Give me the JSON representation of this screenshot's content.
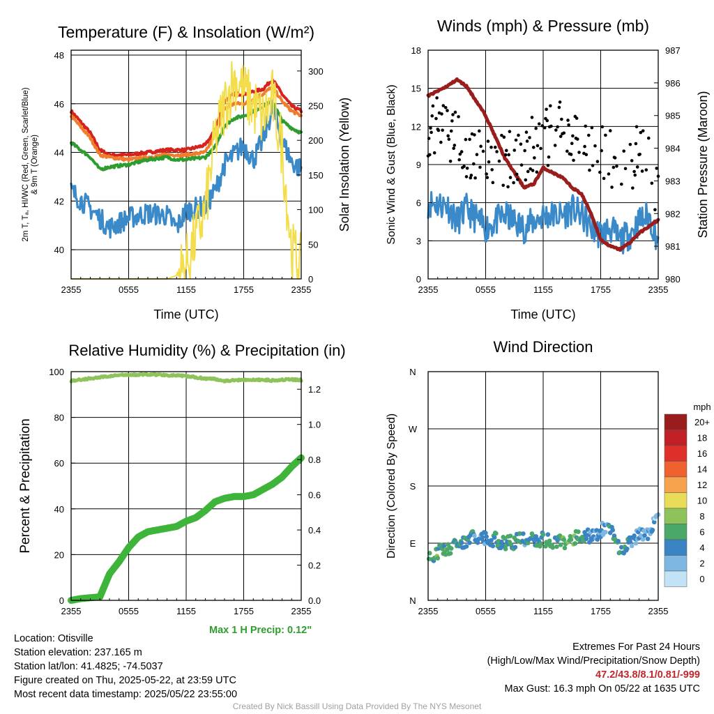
{
  "panels": {
    "temperature": {
      "title": "Temperature (F) & Insolation (W/m²)",
      "left_label": [
        "2m T, Tₐ, HI/WC (Red, Green, Scarlet/Blue)",
        "& 9m T (Orange)"
      ],
      "right_label": "Solar Insolation (Yellow)",
      "xlabel": "Time (UTC)",
      "xticks": [
        "2355",
        "0555",
        "1155",
        "1755",
        "2355"
      ],
      "left_ticks": [
        "40",
        "42",
        "44",
        "46",
        "48"
      ],
      "right_ticks": [
        "0",
        "50",
        "100",
        "150",
        "200",
        "250",
        "300"
      ]
    },
    "winds": {
      "title": "Winds (mph) & Pressure (mb)",
      "left_label": "Sonic Wind & Gust (Blue, Black)",
      "right_label": "Station Pressure (Maroon)",
      "xlabel": "Time (UTC)",
      "xticks": [
        "2355",
        "0555",
        "1155",
        "1755",
        "2355"
      ],
      "left_ticks": [
        "0",
        "3",
        "6",
        "9",
        "12",
        "15",
        "18"
      ],
      "right_ticks": [
        "980",
        "981",
        "982",
        "983",
        "984",
        "985",
        "986",
        "987"
      ]
    },
    "humidity": {
      "title": "Relative Humidity (%) & Precipitation (in)",
      "left_label": "Percent & Precipitation",
      "xticks": [
        "2355",
        "0555",
        "1155",
        "1755",
        "2355"
      ],
      "left_ticks": [
        "0",
        "20",
        "40",
        "60",
        "80",
        "100"
      ],
      "right_ticks": [
        "0.0",
        "0.2",
        "0.4",
        "0.6",
        "0.8",
        "1.0",
        "1.2"
      ],
      "note": "Max 1 H Precip: 0.12\""
    },
    "direction": {
      "title": "Wind Direction",
      "left_label": "Direction (Colored By Speed)",
      "xticks": [
        "2355",
        "0555",
        "1155",
        "1755",
        "2355"
      ],
      "left_ticks": [
        "N",
        "E",
        "S",
        "W",
        "N"
      ],
      "legend_title": "mph",
      "legend_labels": [
        "20+",
        "18",
        "16",
        "14",
        "12",
        "10",
        "8",
        "6",
        "4",
        "2",
        "0"
      ],
      "legend_colors": [
        "#9a1d1d",
        "#c01f25",
        "#df2f2a",
        "#ef6230",
        "#f7a24c",
        "#e8dc58",
        "#8dc35a",
        "#4aa869",
        "#3b84c3",
        "#7eb8e2",
        "#c2e3f5"
      ]
    }
  },
  "info_left": [
    "Location: Otisville",
    "Station elevation: 237.165 m",
    "Station lat/lon: 41.4825; -74.5037",
    "Figure created on Thu, 2025-05-22, at 23:59 UTC",
    "Most recent data timestamp: 2025/05/22 23:55:00"
  ],
  "info_right": {
    "line1": "Extremes For Past 24 Hours",
    "line2": "(High/Low/Max Wind/Precipitation/Snow Depth)",
    "values": "47.2/43.8/8.1/0.81/-999",
    "gust": "Max Gust: 16.3 mph On 05/22 at 1635 UTC"
  },
  "footer": "Created By Nick Bassill Using Data Provided By The NYS Mesonet",
  "chart_data": [
    {
      "type": "line",
      "title": "Temperature (F) & Insolation (W/m²)",
      "x_hours_since_2355": [
        0,
        2,
        3,
        4,
        6,
        8,
        10,
        11,
        12,
        14,
        15,
        16,
        17,
        18,
        19,
        20,
        21,
        22,
        23,
        24
      ],
      "series": [
        {
          "name": "2m T",
          "color": "#d7231e",
          "values": [
            45.7,
            44.8,
            44.1,
            43.9,
            43.9,
            44.0,
            44.1,
            44.1,
            44.1,
            44.3,
            44.9,
            46.1,
            46.4,
            46.4,
            46.5,
            46.6,
            47.0,
            46.4,
            45.9,
            45.7
          ]
        },
        {
          "name": "9m T",
          "color": "#f07d2b",
          "values": [
            45.5,
            44.6,
            43.9,
            43.8,
            43.7,
            43.8,
            43.9,
            43.9,
            43.9,
            44.0,
            44.7,
            45.8,
            46.0,
            46.0,
            46.2,
            46.4,
            46.7,
            46.1,
            45.7,
            45.5
          ]
        },
        {
          "name": "HI/WC",
          "color": "#2e9d2e",
          "values": [
            44.4,
            43.8,
            43.3,
            43.4,
            43.5,
            43.7,
            43.8,
            43.7,
            43.7,
            43.8,
            44.2,
            45.1,
            45.4,
            45.5,
            45.7,
            45.9,
            46.1,
            45.3,
            45.0,
            44.8
          ]
        },
        {
          "name": "Td",
          "color": "#3a89c9",
          "values": [
            42.4,
            41.7,
            41.3,
            40.9,
            41.3,
            41.5,
            41.4,
            40.9,
            41.6,
            41.8,
            42.4,
            43.5,
            43.9,
            44.3,
            43.7,
            44.5,
            45.8,
            44.5,
            43.6,
            43.3
          ]
        },
        {
          "name": "Solar Insolation",
          "color": "#f3dd4a",
          "axis": "right",
          "values": [
            0,
            0,
            0,
            0,
            0,
            0,
            0,
            5,
            20,
            100,
            200,
            250,
            290,
            270,
            250,
            230,
            260,
            190,
            40,
            20
          ]
        }
      ],
      "ylim": [
        38.8,
        48.2
      ],
      "ylim_right": [
        0,
        330
      ]
    },
    {
      "type": "line",
      "title": "Winds (mph) & Pressure (mb)",
      "x_hours_since_2355": [
        0,
        2,
        3,
        4,
        6,
        8,
        10,
        11,
        12,
        14,
        15,
        16,
        17,
        18,
        19,
        20,
        21,
        22,
        23,
        24
      ],
      "series": [
        {
          "name": "Sonic Wind",
          "color": "#3a89c9",
          "values": [
            6.0,
            5.8,
            4.5,
            5.5,
            4.0,
            5.0,
            4.0,
            4.5,
            5.0,
            5.0,
            5.5,
            5.0,
            4.0,
            3.5,
            4.0,
            3.0,
            3.5,
            4.5,
            5.0,
            3.0
          ]
        },
        {
          "name": "Gust",
          "color": "#000000",
          "values": [
            12.0,
            12.0,
            10.5,
            10.0,
            9.0,
            9.5,
            10.0,
            10.5,
            11.0,
            11.5,
            11.5,
            12.0,
            10.5,
            10.0,
            9.5,
            9.0,
            8.5,
            10.5,
            9.0,
            6.0
          ]
        },
        {
          "name": "Station Pressure",
          "color": "#9a1d1d",
          "axis": "right",
          "values": [
            985.6,
            985.9,
            986.1,
            985.9,
            985.0,
            983.7,
            982.8,
            982.9,
            983.4,
            983.1,
            982.8,
            982.6,
            982.0,
            981.2,
            981.0,
            980.9,
            981.1,
            981.4,
            981.6,
            981.8
          ]
        }
      ],
      "ylim": [
        0,
        18
      ],
      "ylim_right": [
        980,
        987
      ]
    },
    {
      "type": "line",
      "title": "Relative Humidity (%) & Precipitation (in)",
      "x_hours_since_2355": [
        0,
        1,
        2,
        3,
        4,
        5,
        6,
        7,
        8,
        9,
        10,
        11,
        12,
        13,
        14,
        15,
        16,
        17,
        18,
        19,
        20,
        21,
        22,
        23,
        24
      ],
      "series": [
        {
          "name": "Relative Humidity",
          "color": "#8dc35a",
          "values": [
            96,
            96.5,
            97,
            97.5,
            98,
            98.5,
            98.5,
            98.7,
            98.8,
            98.7,
            98.5,
            98.3,
            98,
            97.5,
            97,
            96.8,
            96,
            96.2,
            96.5,
            96.3,
            96.5,
            96.2,
            96.5,
            96.5,
            96.3
          ]
        },
        {
          "name": "Precipitation",
          "color": "#3fb43a",
          "axis": "right",
          "values": [
            0,
            0.01,
            0.015,
            0.02,
            0.15,
            0.22,
            0.3,
            0.36,
            0.39,
            0.4,
            0.41,
            0.42,
            0.45,
            0.47,
            0.51,
            0.56,
            0.58,
            0.59,
            0.59,
            0.6,
            0.63,
            0.66,
            0.7,
            0.76,
            0.81
          ]
        }
      ],
      "ylim": [
        0,
        100
      ],
      "ylim_right": [
        0,
        1.3
      ]
    },
    {
      "type": "scatter",
      "title": "Wind Direction",
      "x_hours_since_2355": [
        0,
        1,
        2,
        3,
        4,
        5,
        6,
        7,
        8,
        9,
        10,
        11,
        12,
        13,
        14,
        15,
        16,
        17,
        18,
        19,
        20,
        21,
        22,
        23,
        24
      ],
      "direction_deg": [
        70,
        75,
        80,
        85,
        95,
        100,
        98,
        96,
        90,
        92,
        98,
        95,
        96,
        94,
        92,
        96,
        102,
        100,
        110,
        115,
        80,
        92,
        102,
        108,
        140
      ],
      "speed_mph": [
        7,
        6,
        6,
        5,
        5,
        4,
        4,
        5,
        6,
        5,
        4,
        5,
        6,
        5,
        6,
        7,
        5,
        4,
        3,
        4,
        5,
        4,
        3,
        2,
        2
      ],
      "ylim": [
        0,
        360
      ]
    }
  ]
}
